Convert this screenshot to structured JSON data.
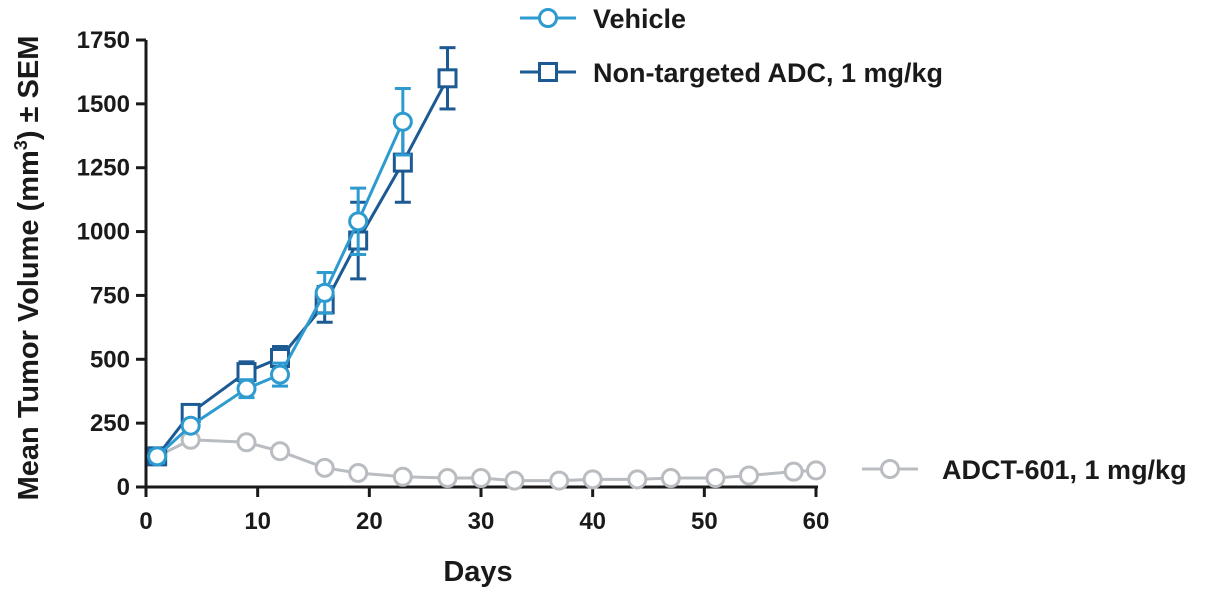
{
  "chart_data": {
    "type": "line",
    "xlabel": "Days",
    "ylabel_main": "Mean Tumor Volume (mm",
    "ylabel_sup": "3",
    "ylabel_tail": ") ± SEM",
    "xlim": [
      0,
      60
    ],
    "ylim": [
      0,
      1750
    ],
    "xticks": [
      "0",
      "10",
      "20",
      "30",
      "40",
      "50",
      "60"
    ],
    "xtick_values": [
      0,
      10,
      20,
      30,
      40,
      50,
      60
    ],
    "yticks": [
      "0",
      "250",
      "500",
      "750",
      "1000",
      "1250",
      "1500",
      "1750"
    ],
    "ytick_values": [
      0,
      250,
      500,
      750,
      1000,
      1250,
      1500,
      1750
    ],
    "grid": false,
    "series": [
      {
        "name": "Vehicle",
        "color": "#2e9bd0",
        "marker": "circle",
        "x": [
          1,
          4,
          9,
          12,
          16,
          19,
          23
        ],
        "y": [
          120,
          240,
          385,
          440,
          760,
          1040,
          1430
        ],
        "err": [
          25,
          20,
          35,
          45,
          80,
          130,
          130
        ]
      },
      {
        "name": "Non-targeted ADC, 1 mg/kg",
        "color": "#1d5a93",
        "marker": "square",
        "x": [
          1,
          4,
          9,
          12,
          16,
          19,
          23,
          27
        ],
        "y": [
          120,
          290,
          450,
          505,
          715,
          965,
          1270,
          1600
        ],
        "err": [
          20,
          20,
          40,
          45,
          70,
          150,
          155,
          120
        ]
      },
      {
        "name": "ADCT-601, 1 mg/kg",
        "color": "#b9bcc1",
        "marker": "circle",
        "x": [
          1,
          4,
          9,
          12,
          16,
          19,
          23,
          27,
          30,
          33,
          37,
          40,
          44,
          47,
          51,
          54,
          58,
          60
        ],
        "y": [
          120,
          185,
          175,
          140,
          75,
          55,
          40,
          35,
          35,
          25,
          25,
          30,
          30,
          35,
          35,
          45,
          60,
          65
        ],
        "err": [
          0,
          0,
          0,
          0,
          0,
          0,
          0,
          0,
          0,
          0,
          0,
          0,
          0,
          0,
          0,
          0,
          0,
          0
        ]
      }
    ]
  }
}
